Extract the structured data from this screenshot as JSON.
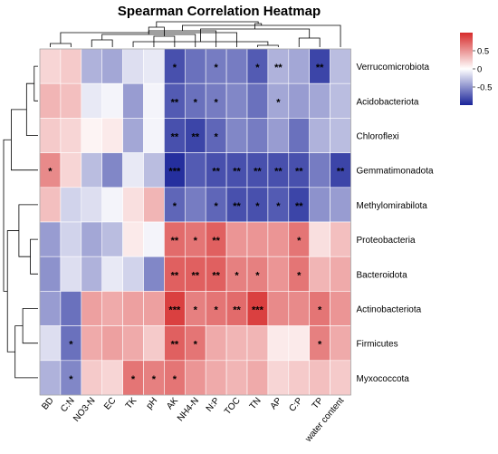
{
  "chart_data": {
    "type": "heatmap",
    "title": "Spearman Correlation Heatmap",
    "columns": [
      "BD",
      "C:N",
      "NO3-N",
      "EC",
      "TK",
      "pH",
      "AK",
      "NH4-N",
      "N:P",
      "TOC",
      "TN",
      "AP",
      "C:P",
      "TP",
      "water content"
    ],
    "rows": [
      "Verrucomicrobiota",
      "Acidobacteriota",
      "Chloroflexi",
      "Gemmatimonadota",
      "Methylomirabilota",
      "Proteobacteria",
      "Bacteroidota",
      "Actinobacteriota",
      "Firmicutes",
      "Myxococcota"
    ],
    "values": [
      [
        0.2,
        0.25,
        -0.35,
        -0.4,
        -0.15,
        -0.1,
        -0.8,
        -0.65,
        -0.6,
        -0.6,
        -0.75,
        -0.35,
        -0.4,
        -0.85,
        -0.3
      ],
      [
        0.35,
        0.3,
        -0.1,
        -0.05,
        -0.45,
        -0.05,
        -0.75,
        -0.65,
        -0.6,
        -0.55,
        -0.65,
        -0.4,
        -0.45,
        -0.4,
        -0.3
      ],
      [
        0.25,
        0.2,
        0.05,
        0.1,
        -0.4,
        -0.05,
        -0.8,
        -0.85,
        -0.7,
        -0.55,
        -0.6,
        -0.45,
        -0.65,
        -0.35,
        -0.3
      ],
      [
        0.55,
        0.2,
        -0.3,
        -0.55,
        -0.1,
        -0.3,
        -0.95,
        -0.75,
        -0.8,
        -0.8,
        -0.8,
        -0.8,
        -0.8,
        -0.6,
        -0.85
      ],
      [
        0.3,
        -0.2,
        -0.15,
        -0.05,
        0.15,
        0.35,
        -0.7,
        -0.6,
        -0.7,
        -0.8,
        -0.8,
        -0.75,
        -0.85,
        -0.5,
        -0.45
      ],
      [
        -0.45,
        -0.2,
        -0.4,
        -0.3,
        0.1,
        -0.05,
        0.7,
        0.65,
        0.75,
        0.5,
        0.5,
        0.5,
        0.65,
        0.15,
        0.3
      ],
      [
        -0.5,
        -0.15,
        -0.35,
        -0.1,
        -0.2,
        -0.55,
        0.75,
        0.75,
        0.75,
        0.6,
        0.6,
        0.5,
        0.65,
        0.35,
        0.4
      ],
      [
        -0.45,
        -0.65,
        0.45,
        0.4,
        0.45,
        0.45,
        0.9,
        0.6,
        0.65,
        0.7,
        0.9,
        0.55,
        0.55,
        0.65,
        0.5
      ],
      [
        -0.15,
        -0.65,
        0.4,
        0.45,
        0.4,
        0.25,
        0.75,
        0.65,
        0.4,
        0.35,
        0.35,
        0.1,
        0.1,
        0.6,
        0.4
      ],
      [
        -0.35,
        -0.55,
        0.25,
        0.2,
        0.65,
        0.6,
        0.65,
        0.5,
        0.4,
        0.35,
        0.4,
        0.2,
        0.25,
        0.3,
        0.25
      ]
    ],
    "significance": [
      [
        "",
        "",
        "",
        "",
        "",
        "",
        "*",
        "",
        "*",
        "",
        "*",
        "**",
        "",
        "**",
        ""
      ],
      [
        "",
        "",
        "",
        "",
        "",
        "",
        "**",
        "*",
        "*",
        "",
        "",
        "*",
        "",
        "",
        ""
      ],
      [
        "",
        "",
        "",
        "",
        "",
        "",
        "**",
        "**",
        "*",
        "",
        "",
        "",
        "",
        "",
        ""
      ],
      [
        "*",
        "",
        "",
        "",
        "",
        "",
        "***",
        "",
        "**",
        "**",
        "**",
        "**",
        "**",
        "",
        "**"
      ],
      [
        "",
        "",
        "",
        "",
        "",
        "",
        "*",
        "",
        "*",
        "**",
        "*",
        "*",
        "**",
        "",
        ""
      ],
      [
        "",
        "",
        "",
        "",
        "",
        "",
        "**",
        "*",
        "**",
        "",
        "",
        "",
        "*",
        "",
        ""
      ],
      [
        "",
        "",
        "",
        "",
        "",
        "",
        "**",
        "**",
        "**",
        "*",
        "*",
        "",
        "*",
        "",
        ""
      ],
      [
        "",
        "",
        "",
        "",
        "",
        "",
        "***",
        "*",
        "*",
        "**",
        "***",
        "",
        "",
        "*",
        ""
      ],
      [
        "",
        "*",
        "",
        "",
        "",
        "",
        "**",
        "*",
        "",
        "",
        "",
        "",
        "",
        "*",
        ""
      ],
      [
        "",
        "*",
        "",
        "",
        "*",
        "*",
        "*",
        "",
        "",
        "",
        "",
        "",
        "",
        "",
        ""
      ]
    ],
    "colorbar": {
      "ticks": [
        0.5,
        0,
        -0.5
      ],
      "tick_labels": [
        "0.5",
        "0",
        "-0.5"
      ],
      "range": [
        -1,
        1
      ]
    },
    "colors": {
      "negative": "#1a2499",
      "neutral": "#ffffff",
      "positive": "#d62b2b"
    },
    "dendrogram_column_merges": [
      [
        10,
        11
      ],
      [
        0,
        1
      ],
      [
        15,
        4
      ],
      [
        2,
        3
      ],
      [
        13,
        12
      ],
      [
        5,
        6
      ],
      [
        18,
        7
      ],
      [
        9,
        16
      ],
      [
        22,
        8
      ],
      [
        17,
        19
      ],
      [
        20,
        21
      ],
      [
        23,
        14
      ],
      [
        26,
        24
      ],
      [
        27,
        25
      ]
    ],
    "dendrogram_row_merges": [
      [
        0,
        1
      ],
      [
        5,
        6
      ],
      [
        10,
        2
      ],
      [
        7,
        8
      ],
      [
        11,
        4
      ],
      [
        13,
        9
      ],
      [
        12,
        3
      ],
      [
        14,
        15
      ],
      [
        16,
        17
      ]
    ]
  }
}
